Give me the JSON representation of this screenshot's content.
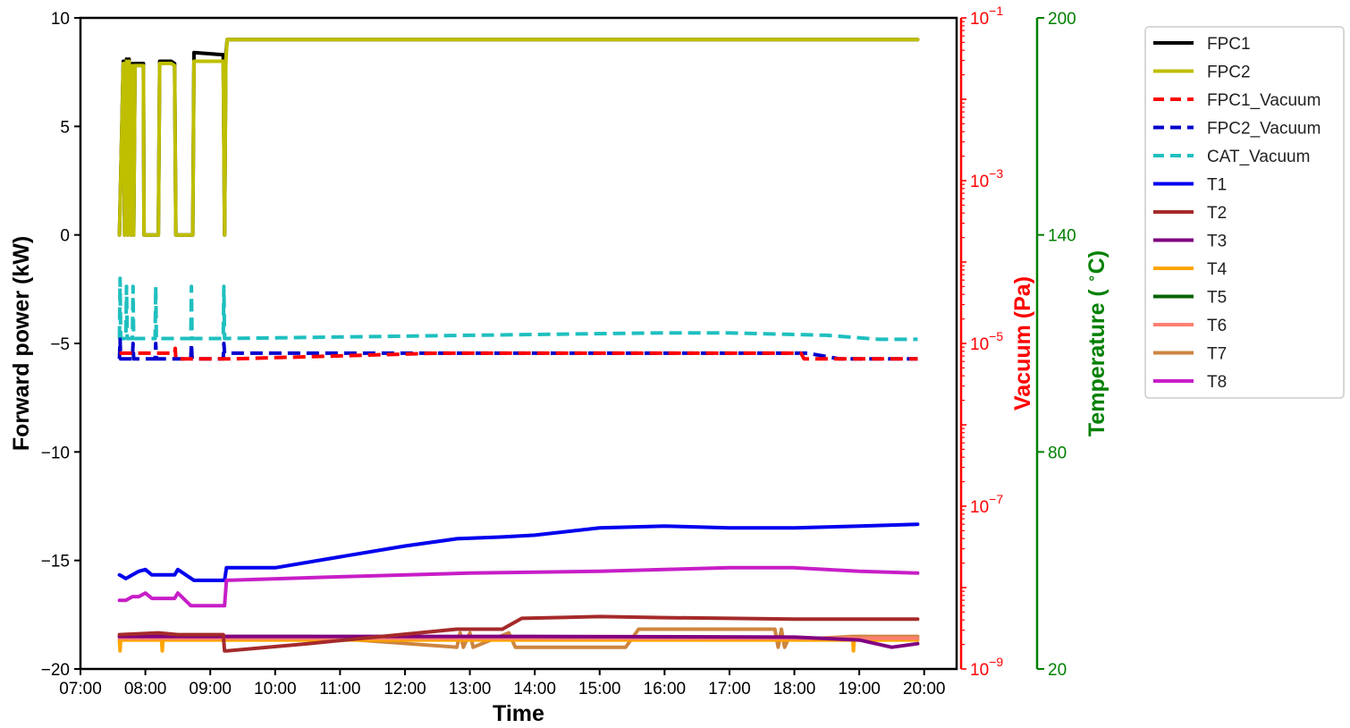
{
  "chart_data": {
    "type": "line",
    "title": "",
    "xlabel": "Time",
    "ylabel_left": "Forward power (kW)",
    "ylabel_right_vacuum": "Vacuum (Pa)",
    "ylabel_right_temp_prefix": "Temperature ( ",
    "ylabel_right_temp_sup": "∘",
    "ylabel_right_temp_suffix": "C)",
    "xlim_hours": [
      7.0,
      20.5
    ],
    "x_ticks": [
      "07:00",
      "08:00",
      "09:00",
      "10:00",
      "11:00",
      "12:00",
      "13:00",
      "14:00",
      "15:00",
      "16:00",
      "17:00",
      "18:00",
      "19:00",
      "20:00"
    ],
    "ylim_left": [
      -20,
      10
    ],
    "y_ticks_left": [
      "10",
      "5",
      "0",
      "−5",
      "−10",
      "−15",
      "−20"
    ],
    "ylim_vacuum_log10": [
      -9,
      -1
    ],
    "y_ticks_vacuum": [
      {
        "base": "10",
        "exp": "−1"
      },
      {
        "base": "10",
        "exp": "−3"
      },
      {
        "base": "10",
        "exp": "−5"
      },
      {
        "base": "10",
        "exp": "−7"
      },
      {
        "base": "10",
        "exp": "−9"
      }
    ],
    "ylim_temp": [
      20,
      200
    ],
    "y_ticks_temp": [
      "200",
      "140",
      "80",
      "20"
    ],
    "colors": {
      "left_axis": "#000000",
      "vacuum_axis": "#ff0000",
      "temp_axis": "#008000"
    },
    "legend": {
      "placement": "outside-top-right",
      "entries": [
        {
          "label": "FPC1",
          "color": "#000000",
          "dash": false
        },
        {
          "label": "FPC2",
          "color": "#bfbf00",
          "dash": false
        },
        {
          "label": "FPC1_Vacuum",
          "color": "#ff0000",
          "dash": true
        },
        {
          "label": "FPC2_Vacuum",
          "color": "#0000cd",
          "dash": true
        },
        {
          "label": "CAT_Vacuum",
          "color": "#1fbfbf",
          "dash": true
        },
        {
          "label": "T1",
          "color": "#0000ee",
          "dash": false
        },
        {
          "label": "T2",
          "color": "#a52a2a",
          "dash": false
        },
        {
          "label": "T3",
          "color": "#800080",
          "dash": false
        },
        {
          "label": "T4",
          "color": "#ffa500",
          "dash": false
        },
        {
          "label": "T5",
          "color": "#006400",
          "dash": false
        },
        {
          "label": "T6",
          "color": "#fa8072",
          "dash": false
        },
        {
          "label": "T7",
          "color": "#cd853f",
          "dash": false
        },
        {
          "label": "T8",
          "color": "#c71ec7",
          "dash": false
        }
      ]
    },
    "series": [
      {
        "name": "FPC1",
        "axis": "left",
        "color": "#000000",
        "width": 4,
        "dash": false,
        "x": [
          7.6,
          7.66,
          7.68,
          7.71,
          7.73,
          7.75,
          7.78,
          7.8,
          7.82,
          7.84,
          7.97,
          7.98,
          8.2,
          8.22,
          8.4,
          8.45,
          8.47,
          8.73,
          8.75,
          9.2,
          9.22,
          9.24,
          9.26,
          19.9
        ],
        "y": [
          0,
          8,
          0,
          8.1,
          0,
          8.1,
          0,
          7.9,
          0,
          7.9,
          7.9,
          0,
          0,
          8,
          8,
          7.9,
          0,
          0,
          8.4,
          8.3,
          0,
          8.3,
          9,
          9
        ]
      },
      {
        "name": "FPC2",
        "axis": "left",
        "color": "#bfbf00",
        "width": 4,
        "dash": false,
        "x": [
          7.6,
          7.66,
          7.68,
          7.71,
          7.73,
          7.75,
          7.78,
          7.8,
          7.82,
          7.84,
          7.97,
          7.98,
          8.2,
          8.22,
          8.4,
          8.45,
          8.47,
          8.73,
          8.75,
          9.2,
          9.22,
          9.24,
          9.26,
          19.9
        ],
        "y": [
          0,
          7.9,
          0,
          8,
          0,
          8,
          0,
          7.8,
          0,
          7.8,
          7.8,
          0,
          0,
          7.9,
          7.9,
          7.8,
          0,
          0,
          8,
          8,
          0,
          8,
          9,
          9
        ]
      },
      {
        "name": "CAT_Vacuum",
        "axis": "vacuum",
        "color": "#1fbfbf",
        "width": 4,
        "dash": true,
        "x": [
          7.6,
          7.61,
          7.62,
          7.7,
          7.71,
          7.72,
          7.8,
          7.81,
          7.82,
          8.15,
          8.16,
          8.17,
          8.7,
          8.71,
          8.72,
          9.2,
          9.21,
          9.22,
          13,
          16,
          17,
          18.5,
          19.3,
          19.9
        ],
        "y": [
          -4.94,
          -4.2,
          -4.94,
          -4.94,
          -4.3,
          -4.94,
          -4.94,
          -4.3,
          -4.94,
          -4.94,
          -4.3,
          -4.94,
          -4.94,
          -4.3,
          -4.94,
          -4.94,
          -4.3,
          -4.94,
          -4.9,
          -4.87,
          -4.87,
          -4.9,
          -4.95,
          -4.95
        ]
      },
      {
        "name": "FPC2_Vacuum",
        "axis": "vacuum",
        "color": "#0000cd",
        "width": 4,
        "dash": true,
        "x": [
          7.6,
          7.61,
          7.62,
          7.8,
          7.81,
          7.82,
          8.15,
          8.16,
          8.17,
          8.7,
          8.71,
          8.72,
          9.2,
          9.21,
          9.22,
          18.2,
          18.7,
          19.9
        ],
        "y": [
          -5.19,
          -4.95,
          -5.19,
          -5.19,
          -5.0,
          -5.19,
          -5.19,
          -5.0,
          -5.19,
          -5.19,
          -5.0,
          -5.19,
          -5.19,
          -5.0,
          -5.12,
          -5.12,
          -5.19,
          -5.19
        ]
      },
      {
        "name": "FPC1_Vacuum",
        "axis": "vacuum",
        "color": "#ff0000",
        "width": 4,
        "dash": true,
        "x": [
          7.6,
          8.3,
          8.45,
          8.46,
          8.47,
          9.3,
          12.5,
          18.1,
          18.15,
          19.9
        ],
        "y": [
          -5.12,
          -5.12,
          -5.12,
          -5.06,
          -5.19,
          -5.19,
          -5.12,
          -5.12,
          -5.19,
          -5.19
        ]
      },
      {
        "name": "T7",
        "axis": "temp",
        "color": "#cd853f",
        "width": 4,
        "dash": false,
        "x": [
          7.6,
          9.2,
          9.25,
          10.5,
          12.8,
          12.85,
          12.9,
          13.0,
          13.05,
          13.6,
          13.7,
          14.0,
          15.4,
          15.6,
          17.7,
          17.75,
          17.8,
          17.85,
          17.9,
          18.9,
          19.9
        ],
        "y": [
          29,
          29,
          29,
          29,
          26,
          30,
          26,
          30,
          26,
          30,
          26,
          26,
          26,
          31,
          31,
          26,
          31,
          26,
          28,
          29,
          29
        ]
      },
      {
        "name": "T4",
        "axis": "temp",
        "color": "#ffa500",
        "width": 4,
        "dash": false,
        "x": [
          7.6,
          7.61,
          7.62,
          8.25,
          8.26,
          8.27,
          9.2,
          18.9,
          18.91,
          18.92,
          19.5,
          19.9
        ],
        "y": [
          28,
          25,
          28,
          28,
          25,
          28,
          28,
          28,
          25,
          28,
          28,
          28
        ]
      },
      {
        "name": "T6",
        "axis": "temp",
        "color": "#fa8072",
        "width": 4,
        "dash": false,
        "x": [
          7.6,
          19.9
        ],
        "y": [
          28.5,
          28.5
        ]
      },
      {
        "name": "T3",
        "axis": "temp",
        "color": "#800080",
        "width": 4,
        "dash": false,
        "x": [
          7.6,
          9.2,
          14,
          18,
          19,
          19.5,
          19.9
        ],
        "y": [
          29,
          29,
          29,
          28.8,
          28,
          26,
          27
        ]
      },
      {
        "name": "T2",
        "axis": "temp",
        "color": "#a52a2a",
        "width": 4,
        "dash": false,
        "x": [
          7.6,
          8.2,
          8.5,
          9.2,
          9.22,
          9.25,
          10.5,
          12.8,
          13.5,
          13.8,
          15,
          16,
          17,
          18,
          19.9
        ],
        "y": [
          29.5,
          30,
          29.5,
          29.5,
          25,
          25,
          27,
          31,
          31,
          34,
          34.5,
          34.2,
          34,
          33.8,
          33.8
        ]
      },
      {
        "name": "T1",
        "axis": "temp",
        "color": "#0000ee",
        "width": 4,
        "dash": false,
        "x": [
          7.6,
          7.7,
          7.8,
          7.9,
          8.0,
          8.1,
          8.2,
          8.45,
          8.5,
          8.75,
          9.2,
          9.22,
          9.25,
          10,
          11,
          12,
          12.8,
          13.5,
          14,
          15,
          16,
          17,
          18,
          19,
          19.9
        ],
        "y": [
          46,
          45,
          46,
          47,
          47.5,
          46,
          46,
          46,
          47.5,
          44.5,
          44.5,
          44.5,
          48,
          48,
          51,
          54,
          56,
          56.5,
          57,
          59,
          59.5,
          59,
          59,
          59.5,
          60
        ]
      },
      {
        "name": "T8",
        "axis": "temp",
        "color": "#c71ec7",
        "width": 4,
        "dash": false,
        "x": [
          7.6,
          7.7,
          7.8,
          7.9,
          8.0,
          8.1,
          8.2,
          8.45,
          8.5,
          8.7,
          9.2,
          9.22,
          9.25,
          11,
          13,
          15,
          16,
          17,
          18,
          19,
          19.9
        ],
        "y": [
          39,
          39,
          40,
          40,
          41,
          39.5,
          39.5,
          39.5,
          41,
          37.5,
          37.5,
          37.5,
          44.5,
          45.5,
          46.5,
          47,
          47.5,
          48,
          48,
          47,
          46.5
        ]
      }
    ]
  }
}
